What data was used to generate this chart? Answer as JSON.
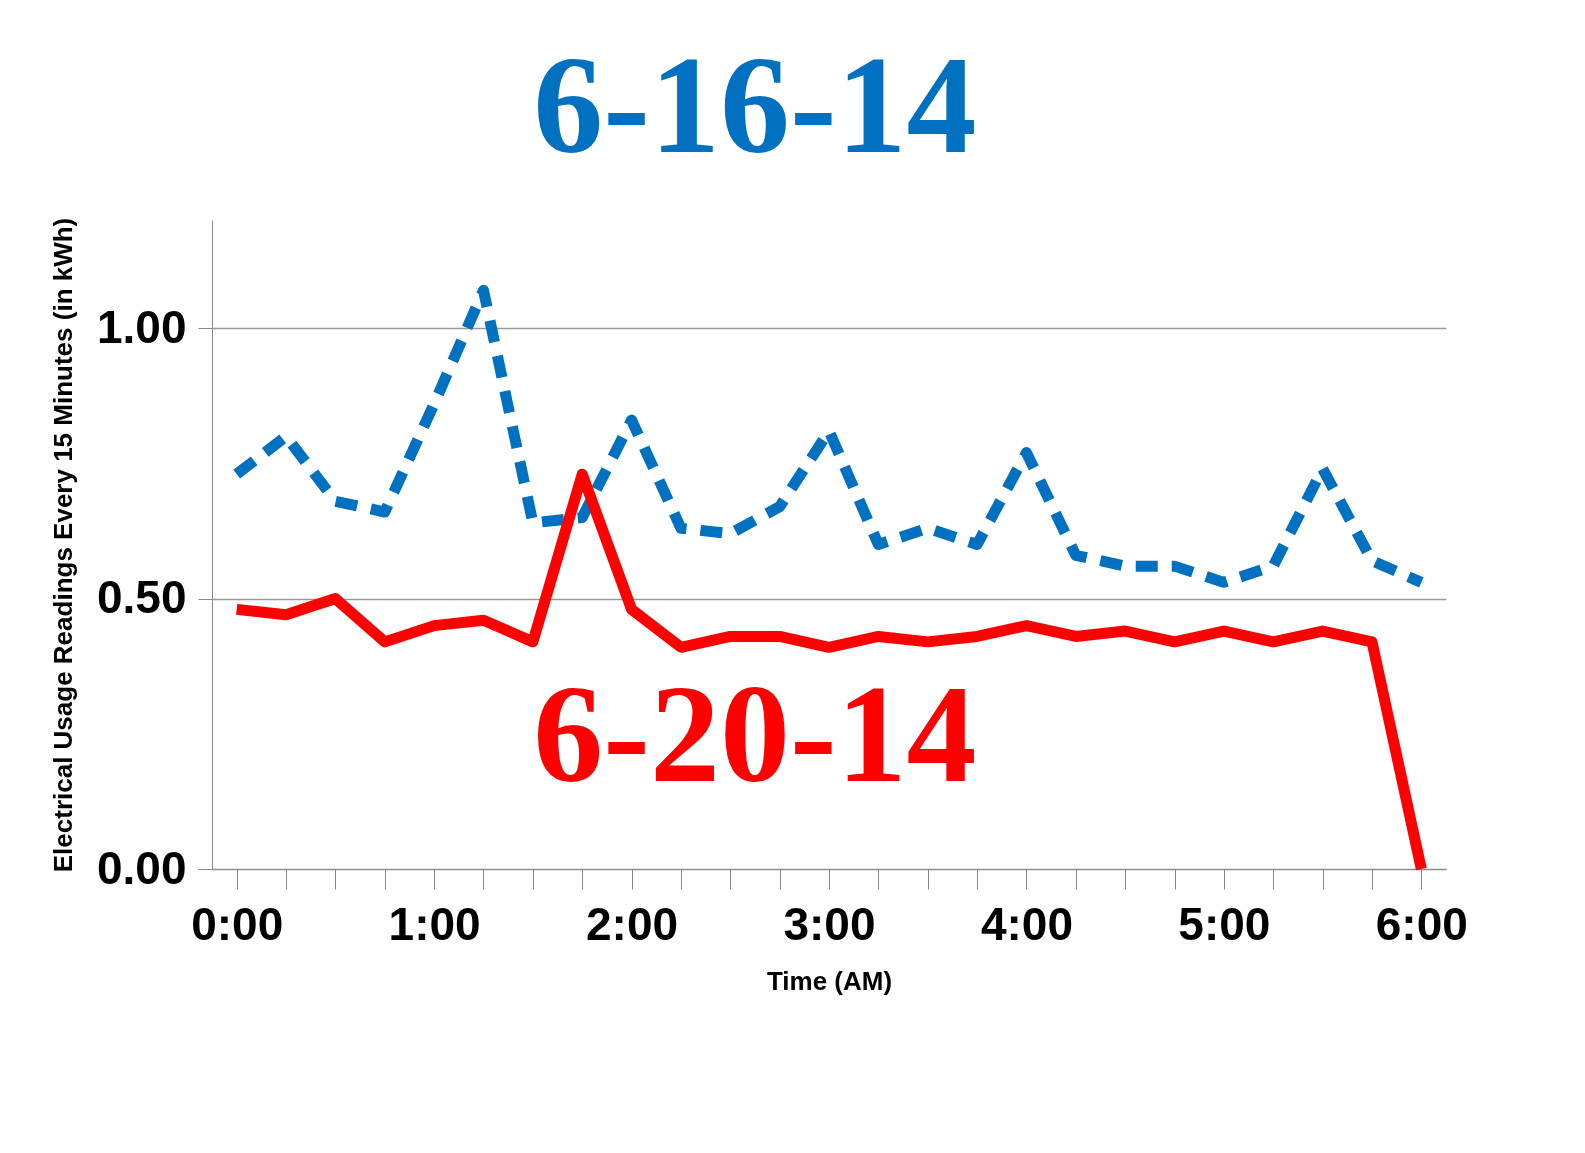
{
  "chart_data": {
    "type": "line",
    "xlabel": "Time (AM)",
    "ylabel": "Electrical Usage Readings  Every 15 Minutes (in kWh)",
    "categories": [
      "0:00",
      null,
      null,
      null,
      "1:00",
      null,
      null,
      null,
      "2:00",
      null,
      null,
      null,
      "3:00",
      null,
      null,
      null,
      "4:00",
      null,
      null,
      null,
      "5:00",
      null,
      null,
      null,
      "6:00"
    ],
    "series": [
      {
        "name": "6-16-14",
        "color": "#0070c0",
        "line_style": "dashed",
        "values": [
          0.73,
          0.8,
          0.68,
          0.66,
          0.86,
          1.07,
          0.64,
          0.65,
          0.83,
          0.63,
          0.62,
          0.67,
          0.81,
          0.6,
          0.63,
          0.6,
          0.77,
          0.58,
          0.56,
          0.56,
          0.53,
          0.56,
          0.74,
          0.57,
          0.53
        ]
      },
      {
        "name": "6-20-14",
        "color": "#ff0000",
        "line_style": "solid",
        "values": [
          0.48,
          0.47,
          0.5,
          0.42,
          0.45,
          0.46,
          0.42,
          0.73,
          0.48,
          0.41,
          0.43,
          0.43,
          0.41,
          0.43,
          0.42,
          0.43,
          0.45,
          0.43,
          0.44,
          0.42,
          0.44,
          0.42,
          0.44,
          0.42,
          0.0
        ]
      }
    ],
    "ylim": [
      0,
      1.2
    ],
    "yticks": [
      {
        "value": 0,
        "label": "0.00"
      },
      {
        "value": 0.5,
        "label": "0.50"
      },
      {
        "value": 1,
        "label": "1.00"
      }
    ],
    "grid": "y",
    "marker": "none"
  }
}
